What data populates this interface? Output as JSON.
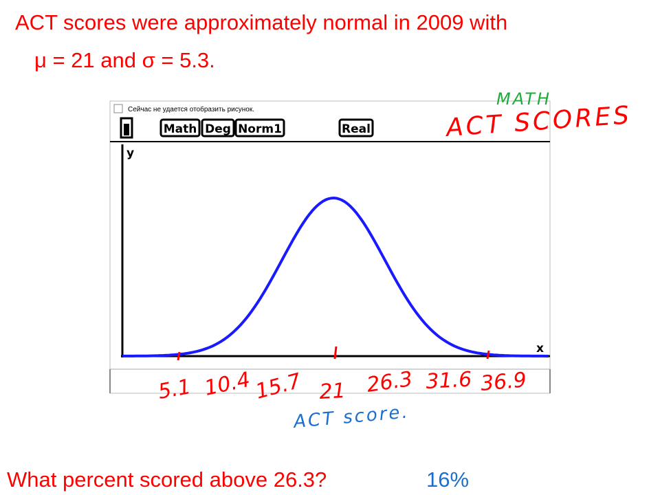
{
  "title": {
    "line1": "ACT scores were approximately normal in 2009 with",
    "line2": "μ = 21 and σ = 5.3."
  },
  "calculator": {
    "error_text": "Сейчас не удается отобразить рисунок.",
    "status_bar": [
      "Math",
      "Deg",
      "Norm1",
      "Real"
    ],
    "y_axis_label": "y",
    "x_axis_label": "x"
  },
  "annotations": {
    "subject": "MATH",
    "heading": "ACT SCORES",
    "tick_labels": [
      "5.1",
      "10.4",
      "15.7",
      "21",
      "26.3",
      "31.6",
      "36.9"
    ],
    "axis_label": "ACT score."
  },
  "question": {
    "text": "What percent scored above 26.3?",
    "answer": "16%"
  }
}
